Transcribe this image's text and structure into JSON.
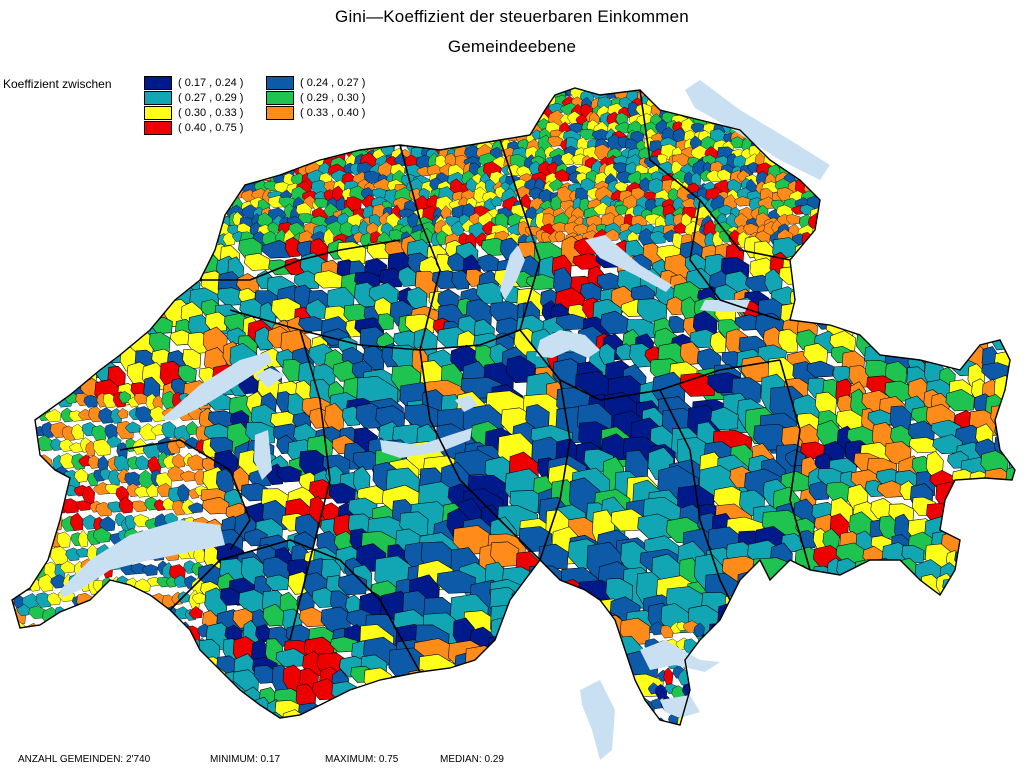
{
  "title": {
    "line1": "Gini—Koeffizient der steuerbaren Einkommen",
    "line2": "Gemeindeebene"
  },
  "legend": {
    "caption": "Koeffizient zwischen",
    "items": [
      {
        "label": "( 0.17 , 0.24 )",
        "color": "#001a8c"
      },
      {
        "label": "( 0.24 , 0.27 )",
        "color": "#0d5aa8"
      },
      {
        "label": "( 0.27 , 0.29 )",
        "color": "#12a5b4"
      },
      {
        "label": "( 0.29 , 0.30 )",
        "color": "#1ec44f"
      },
      {
        "label": "( 0.30 , 0.33 )",
        "color": "#ffff1a"
      },
      {
        "label": "( 0.33 , 0.40 )",
        "color": "#ff8c1a"
      },
      {
        "label": "( 0.40 , 0.75 )",
        "color": "#ee0000"
      }
    ]
  },
  "stats": {
    "count": "ANZAHL GEMEINDEN: 2'740",
    "minimum": "MINIMUM: 0.17",
    "maximum": "MAXIMUM: 0.75",
    "median": "MEDIAN: 0.29"
  },
  "lake_color": "#c8e0f2"
}
